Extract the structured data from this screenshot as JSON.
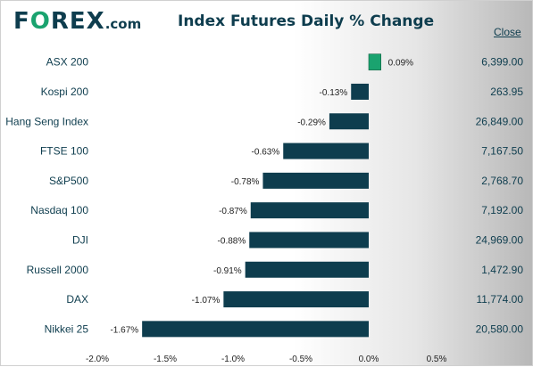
{
  "logo": {
    "part1": "F",
    "part2": "O",
    "part3": "REX",
    "part4": ".com"
  },
  "chart_data": {
    "type": "bar",
    "orientation": "horizontal",
    "title": "Index Futures Daily % Change",
    "categories": [
      "ASX 200",
      "Kospi 200",
      "Hang Seng Index",
      "FTSE 100",
      "S&P500",
      "Nasdaq 100",
      "DJI",
      "Russell 2000",
      "DAX",
      "Nikkei 25"
    ],
    "values": [
      0.09,
      -0.13,
      -0.29,
      -0.63,
      -0.78,
      -0.87,
      -0.88,
      -0.91,
      -1.07,
      -1.67
    ],
    "value_labels": [
      "0.09%",
      "-0.13%",
      "-0.29%",
      "-0.63%",
      "-0.78%",
      "-0.87%",
      "-0.88%",
      "-0.91%",
      "-1.07%",
      "-1.67%"
    ],
    "close_header": "Close",
    "close_values": [
      "6,399.00",
      "263.95",
      "26,849.00",
      "7,167.50",
      "2,768.70",
      "7,192.00",
      "24,969.00",
      "1,472.90",
      "11,774.00",
      "20,580.00"
    ],
    "xlim": [
      -2.0,
      0.5
    ],
    "x_ticks": [
      -2.0,
      -1.5,
      -1.0,
      -0.5,
      0.0,
      0.5
    ],
    "x_tick_labels": [
      "-2.0%",
      "-1.5%",
      "-1.0%",
      "-0.5%",
      "0.0%",
      "0.5%"
    ],
    "colors": {
      "negative": "#0e3d4e",
      "positive": "#1aa36f",
      "text": "#0e3d4e"
    },
    "grid": false
  }
}
